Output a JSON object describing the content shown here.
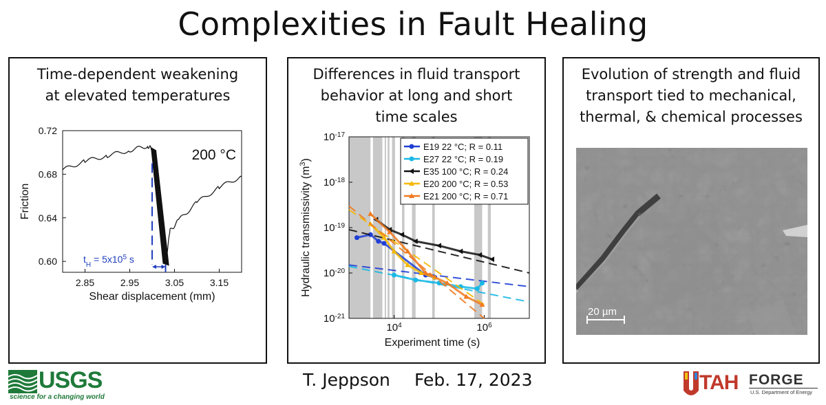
{
  "title": "Complexities in Fault Healing",
  "panels": [
    {
      "title_lines": [
        "Time-dependent weakening",
        "at elevated temperatures"
      ]
    },
    {
      "title_lines": [
        "Differences in fluid transport",
        "behavior at long and short",
        "time scales"
      ]
    },
    {
      "title_lines": [
        "Evolution of strength and fluid",
        "transport tied to mechanical,",
        "thermal, & chemical processes"
      ]
    }
  ],
  "footer": {
    "author": "T. Jeppson",
    "date": "Feb. 17, 2023"
  },
  "logos": {
    "usgs": {
      "word": "USGS",
      "tagline": "science for a changing world",
      "color": "#1f7a3a"
    },
    "forge": {
      "utah": "TAH",
      "forge": "FORGE",
      "doe": "U.S. Department of Energy",
      "color": "#c0392b"
    }
  },
  "sem": {
    "scale_label": "20 µm"
  },
  "chart_data": [
    {
      "type": "line",
      "title": "",
      "annotation": "200 °C",
      "xlabel": "Shear displacement (mm)",
      "ylabel": "Friction",
      "xlim": [
        2.8,
        3.2
      ],
      "ylim": [
        0.59,
        0.72
      ],
      "xticks": [
        "2.85",
        "2.95",
        "3.05",
        "3.15"
      ],
      "xtick_values": [
        2.85,
        2.95,
        3.05,
        3.15
      ],
      "yticks": [
        "0.60",
        "0.64",
        "0.68",
        "0.72"
      ],
      "ytick_values": [
        0.6,
        0.64,
        0.68,
        0.72
      ],
      "hold_label": "t",
      "hold_sub": "H",
      "hold_eq": " = 5x10",
      "hold_sup": "5",
      "hold_unit": " s",
      "hold_start": 3.0,
      "hold_end": 3.03,
      "series": [
        {
          "x": [
            2.8,
            2.85,
            2.9,
            2.95,
            2.99,
            3.0,
            3.03,
            3.04,
            3.06,
            3.1,
            3.15,
            3.2
          ],
          "y": [
            0.684,
            0.692,
            0.697,
            0.702,
            0.706,
            0.703,
            0.598,
            0.628,
            0.638,
            0.654,
            0.668,
            0.678
          ]
        }
      ],
      "colors": {
        "trace": "#111111",
        "hold": "#1f3fbf"
      }
    },
    {
      "type": "scatter",
      "title": "",
      "xlabel": "Experiment time (s)",
      "ylabel": "Hydraulic transmissivity (m",
      "ylabel_sup": "3",
      "ylabel_end": ")",
      "xscale": "log",
      "yscale": "log",
      "xlim": [
        1000,
        10000000
      ],
      "ylim": [
        1e-21,
        1e-17
      ],
      "xticks": [
        {
          "base": "10",
          "exp": "4",
          "value": 10000
        },
        {
          "base": "10",
          "exp": "6",
          "value": 1000000
        }
      ],
      "yticks": [
        {
          "base": "10",
          "exp": "-17",
          "value": 1e-17
        },
        {
          "base": "10",
          "exp": "-18",
          "value": 1e-18
        },
        {
          "base": "10",
          "exp": "-19",
          "value": 1e-19
        },
        {
          "base": "10",
          "exp": "-20",
          "value": 1e-20
        },
        {
          "base": "10",
          "exp": "-21",
          "value": 1e-21
        }
      ],
      "shaded_x": [
        [
          1000,
          3000
        ],
        [
          3400,
          5500
        ],
        [
          6200,
          6600
        ],
        [
          7200,
          7900
        ],
        [
          9000,
          10500
        ],
        [
          15000,
          17000
        ],
        [
          25000,
          30000
        ],
        [
          70000,
          80000
        ],
        [
          600000,
          900000
        ],
        [
          1200000,
          1400000
        ]
      ],
      "series": [
        {
          "name": "E19 22 °C; R = 0.11",
          "color": "#1f3fd6",
          "marker": "circle",
          "x": [
            1500,
            3000,
            4500,
            6000,
            50000,
            80000
          ],
          "y": [
            6e-20,
            7e-20,
            5e-20,
            4.5e-20,
            9e-21,
            8e-21
          ],
          "fit": {
            "x": [
              1000,
              10000000
            ],
            "y": [
              1.5e-20,
              5e-21
            ]
          }
        },
        {
          "name": "E27 22 °C; R = 0.19",
          "color": "#19b8e6",
          "marker": "circle",
          "x": [
            10000,
            30000,
            100000,
            300000,
            700000,
            900000
          ],
          "y": [
            9e-21,
            7e-21,
            6e-21,
            5e-21,
            4.5e-21,
            6e-21
          ],
          "fit": {
            "x": [
              1000,
              10000000
            ],
            "y": [
              1.4e-20,
              2.3e-21
            ]
          }
        },
        {
          "name": "E35 100 °C; R = 0.24",
          "color": "#111111",
          "marker": "triangle-left",
          "x": [
            4000,
            8000,
            15000,
            30000,
            100000,
            300000,
            800000,
            1500000
          ],
          "y": [
            1.5e-19,
            9e-20,
            7e-20,
            5e-20,
            4e-20,
            3e-20,
            2.5e-20,
            2e-20
          ],
          "fit": {
            "x": [
              1000,
              10000000
            ],
            "y": [
              9e-20,
              1e-20
            ]
          }
        },
        {
          "name": "E20 200 °C; R = 0.53",
          "color": "#f5b800",
          "marker": "triangle-up",
          "x": [
            3000,
            6000,
            10000,
            20000,
            40000,
            80000
          ],
          "y": [
            1.2e-19,
            6e-20,
            3e-20,
            1.5e-20,
            1e-20,
            8e-21
          ],
          "fit": {
            "x": [
              1000,
              1000000
            ],
            "y": [
              2.5e-19,
              2e-21
            ]
          }
        },
        {
          "name": "E21 200 °C; R = 0.71",
          "color": "#f07a20",
          "marker": "triangle-up",
          "x": [
            3000,
            8000,
            20000,
            50000,
            150000,
            400000,
            900000
          ],
          "y": [
            2e-19,
            8e-20,
            3e-20,
            1e-20,
            6e-21,
            3e-21,
            2e-21
          ],
          "fit": {
            "x": [
              1000,
              1000000
            ],
            "y": [
              3e-19,
              1e-21
            ]
          }
        }
      ]
    }
  ]
}
